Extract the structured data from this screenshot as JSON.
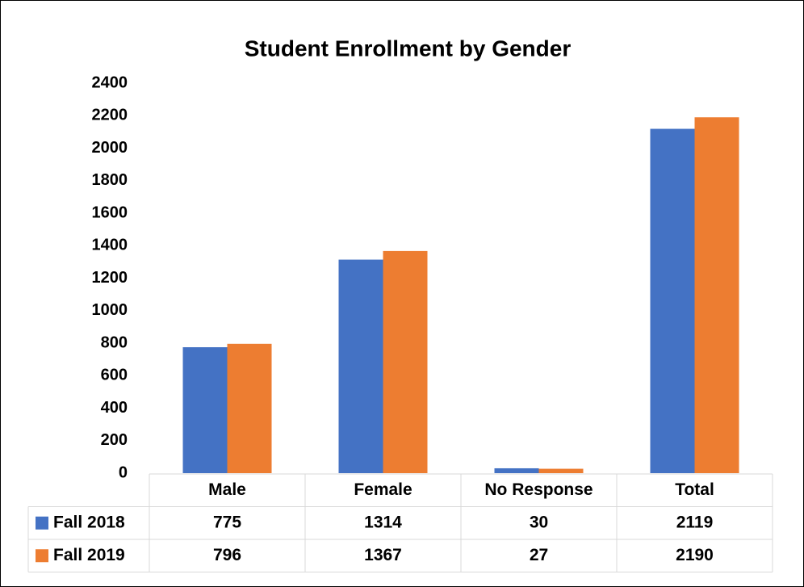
{
  "chart_data": {
    "type": "bar",
    "title": "Student Enrollment by Gender",
    "categories": [
      "Male",
      "Female",
      "No Response",
      "Total"
    ],
    "series": [
      {
        "name": "Fall 2018",
        "color": "#4472c4",
        "values": [
          775,
          1314,
          30,
          2119
        ]
      },
      {
        "name": "Fall 2019",
        "color": "#ed7d31",
        "values": [
          796,
          1367,
          27,
          2190
        ]
      }
    ],
    "ylim": [
      0,
      2400
    ],
    "yticks": [
      0,
      200,
      400,
      600,
      800,
      1000,
      1200,
      1400,
      1600,
      1800,
      2000,
      2200,
      2400
    ],
    "grid": false,
    "data_table": true
  }
}
